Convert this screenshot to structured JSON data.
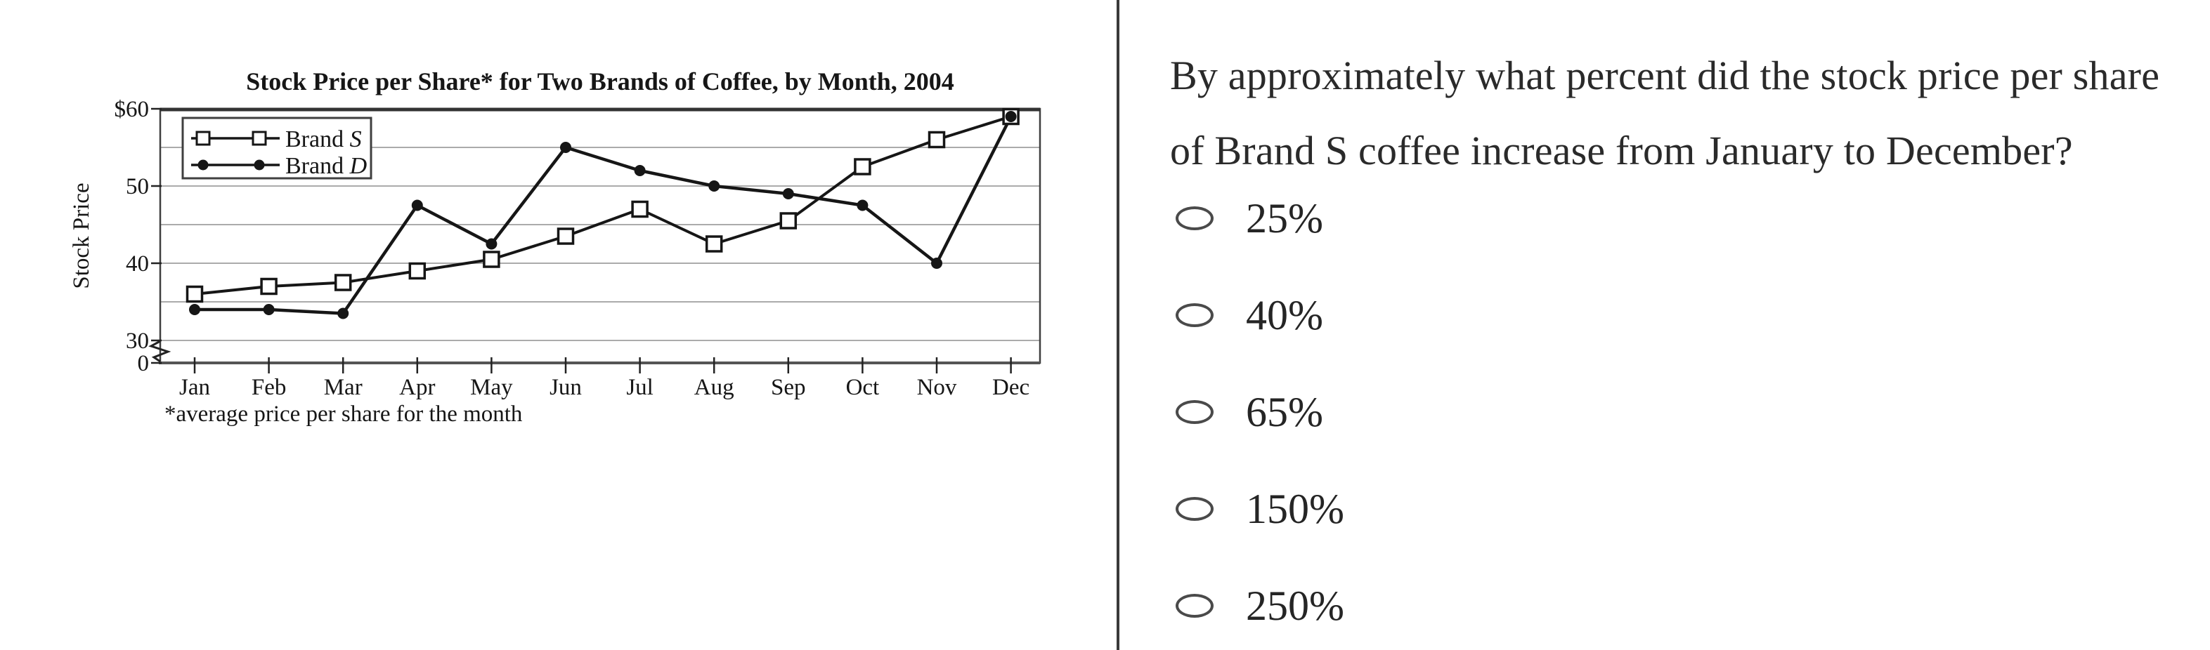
{
  "divider_color": "#3a3a3a",
  "chart_data": {
    "type": "line",
    "title": "Stock Price per Share* for Two Brands of Coffee, by Month, 2004",
    "ylabel": "Stock Price",
    "xlabel": "",
    "footnote": "*average price per share for the month",
    "categories": [
      "Jan",
      "Feb",
      "Mar",
      "Apr",
      "May",
      "Jun",
      "Jul",
      "Aug",
      "Sep",
      "Oct",
      "Nov",
      "Dec"
    ],
    "series": [
      {
        "name": "Brand S",
        "name_prefix": "Brand",
        "name_letter": "S",
        "marker": "square",
        "values": [
          36,
          37,
          37.5,
          39,
          40.5,
          43.5,
          47,
          42.5,
          45.5,
          52.5,
          56,
          59
        ]
      },
      {
        "name": "Brand D",
        "name_prefix": "Brand",
        "name_letter": "D",
        "marker": "dot",
        "values": [
          34,
          34,
          33.5,
          47.5,
          42.5,
          55,
          52,
          50,
          49,
          47.5,
          40,
          59
        ]
      }
    ],
    "y_ticks": [
      {
        "label": "$60",
        "value": 60
      },
      {
        "label": "50",
        "value": 50
      },
      {
        "label": "40",
        "value": 40
      },
      {
        "label": "30",
        "value": 30
      },
      {
        "label": "0",
        "value": 0
      }
    ],
    "gridline_values": [
      55,
      50,
      45,
      40,
      35,
      30
    ],
    "ylim_display": [
      30,
      60
    ],
    "axis_break": true,
    "grid": true,
    "legend_position": "top-left"
  },
  "question": {
    "text": "By approximately what percent did the stock price per share of Brand S coffee increase from January to December?",
    "options": [
      "25%",
      "40%",
      "65%",
      "150%",
      "250%"
    ]
  }
}
